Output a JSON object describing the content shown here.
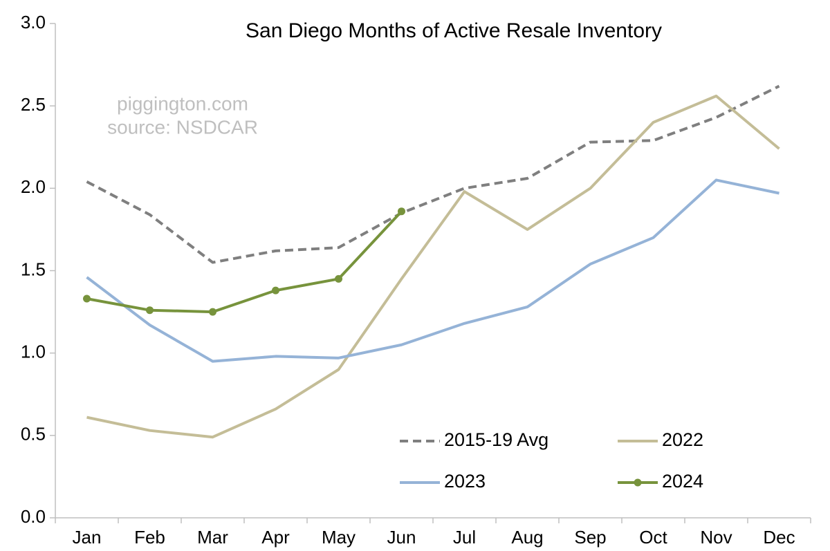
{
  "chart_data": {
    "type": "line",
    "title": "San Diego Months of Active Resale Inventory",
    "annotations": [
      "piggington.com",
      "source: NSDCAR"
    ],
    "categories": [
      "Jan",
      "Feb",
      "Mar",
      "Apr",
      "May",
      "Jun",
      "Jul",
      "Aug",
      "Sep",
      "Oct",
      "Nov",
      "Dec"
    ],
    "series": [
      {
        "name": "2015-19 Avg",
        "color": "#7f7f7f",
        "style": "dashed",
        "values": [
          2.04,
          1.84,
          1.55,
          1.62,
          1.64,
          1.85,
          2.0,
          2.06,
          2.28,
          2.29,
          2.43,
          2.62
        ]
      },
      {
        "name": "2022",
        "color": "#c4bd97",
        "style": "solid",
        "values": [
          0.61,
          0.53,
          0.49,
          0.66,
          0.9,
          1.45,
          1.98,
          1.75,
          2.0,
          2.4,
          2.56,
          2.24
        ]
      },
      {
        "name": "2023",
        "color": "#95b3d7",
        "style": "solid",
        "values": [
          1.46,
          1.17,
          0.95,
          0.98,
          0.97,
          1.05,
          1.18,
          1.28,
          1.54,
          1.7,
          2.05,
          1.97
        ]
      },
      {
        "name": "2024",
        "color": "#77933c",
        "style": "solid",
        "marker": true,
        "values": [
          1.33,
          1.26,
          1.25,
          1.38,
          1.45,
          1.86,
          null,
          null,
          null,
          null,
          null,
          null
        ]
      }
    ],
    "ylim": [
      0,
      3
    ],
    "yticks": [
      {
        "value": 0,
        "label": "0.0"
      },
      {
        "value": 0.5,
        "label": "0.5"
      },
      {
        "value": 1,
        "label": "1.0"
      },
      {
        "value": 1.5,
        "label": "1.5"
      },
      {
        "value": 2,
        "label": "2.0"
      },
      {
        "value": 2.5,
        "label": "2.5"
      },
      {
        "value": 3,
        "label": "3.0"
      }
    ],
    "grid": false,
    "legend": "lower right"
  }
}
